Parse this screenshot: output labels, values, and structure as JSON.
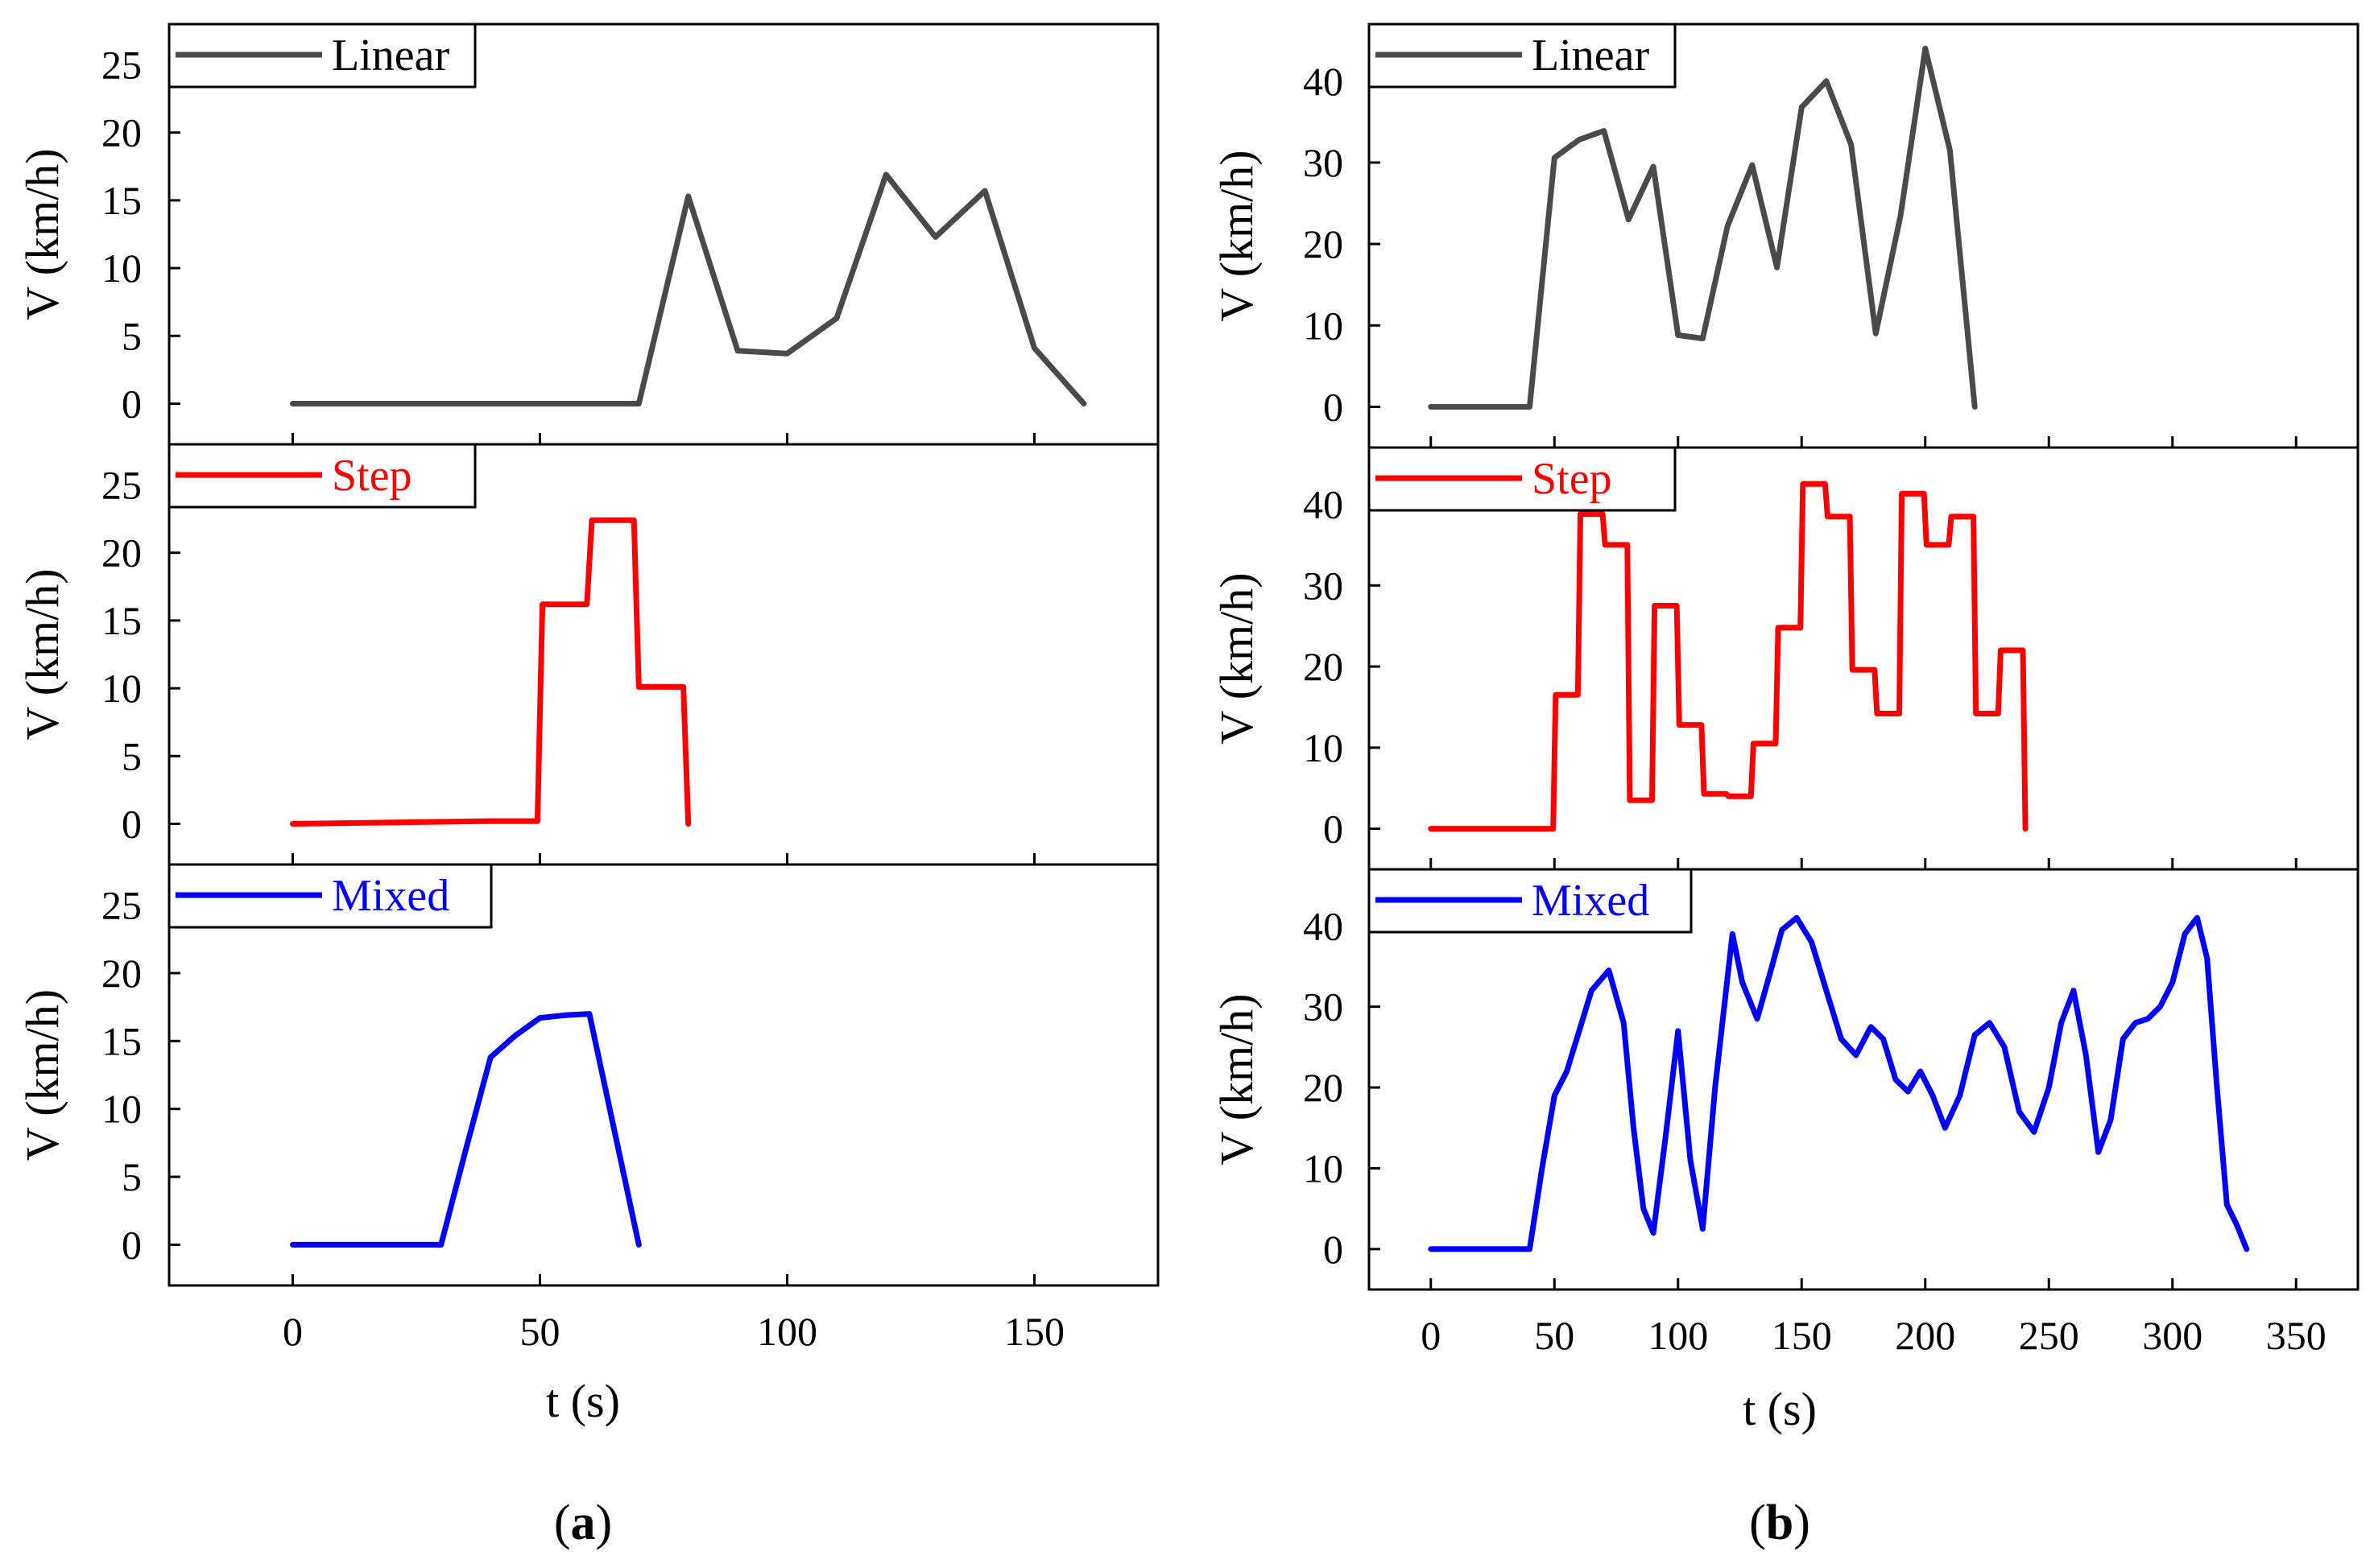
{
  "colors": {
    "Linear": "#4a4a4a",
    "Step": "#ff0000",
    "Mixed": "#0000ff"
  },
  "chart_data": [
    {
      "panel": "a",
      "label_open": "(",
      "label_letter": "a",
      "label_close": ")",
      "type": "line",
      "xlabel": "t (s)",
      "ylabel": "V (km/h)",
      "xlim": [
        -25,
        175
      ],
      "ylim": [
        -3,
        28
      ],
      "xticks": [
        0,
        50,
        100,
        150
      ],
      "yticks": [
        0,
        5,
        10,
        15,
        20,
        25
      ],
      "series": [
        {
          "name": "Linear",
          "color": "#4a4a4a",
          "x": [
            0,
            70,
            80,
            90,
            100,
            110,
            120,
            130,
            140,
            150,
            160
          ],
          "y": [
            0,
            0,
            15.3,
            3.9,
            3.7,
            6.3,
            16.9,
            12.3,
            15.7,
            4.1,
            0
          ]
        },
        {
          "name": "Step",
          "color": "#ff0000",
          "x": [
            0,
            40,
            49.5,
            50.5,
            59.5,
            60.5,
            69,
            70,
            79,
            80
          ],
          "y": [
            0,
            0.2,
            0.2,
            16.2,
            16.2,
            22.4,
            22.4,
            10.1,
            10.1,
            0
          ]
        },
        {
          "name": "Mixed",
          "color": "#0000ff",
          "x": [
            0,
            30,
            35,
            40,
            45,
            50,
            55,
            60,
            65,
            70
          ],
          "y": [
            0,
            0,
            7,
            13.8,
            15.4,
            16.7,
            16.9,
            17,
            8.5,
            0
          ]
        }
      ]
    },
    {
      "panel": "b",
      "label_open": "(",
      "label_letter": "b",
      "label_close": ")",
      "type": "line",
      "xlabel": "t (s)",
      "ylabel": "V (km/h)",
      "xlim": [
        -25,
        375
      ],
      "ylim": [
        -5,
        47
      ],
      "xticks": [
        0,
        50,
        100,
        150,
        200,
        250,
        300,
        350
      ],
      "yticks": [
        0,
        10,
        20,
        30,
        40
      ],
      "series": [
        {
          "name": "Linear",
          "color": "#4a4a4a",
          "x": [
            0,
            40,
            50,
            60,
            70,
            80,
            90,
            100,
            110,
            120,
            130,
            140,
            150,
            160,
            170,
            180,
            190,
            200,
            210,
            220
          ],
          "y": [
            0,
            0,
            30.6,
            32.8,
            33.9,
            23,
            29.5,
            8.8,
            8.4,
            22.2,
            29.7,
            17.1,
            36.8,
            40,
            32.2,
            9,
            23.5,
            44,
            31.5,
            0
          ]
        },
        {
          "name": "Step",
          "color": "#ff0000",
          "x": [
            0,
            49.5,
            50.5,
            59.5,
            60.5,
            69.5,
            70.5,
            79.5,
            80.5,
            89.5,
            90.5,
            99.5,
            100.5,
            109.5,
            110.5,
            119.5,
            120.5,
            129.5,
            130.5,
            139.5,
            140.5,
            149.5,
            150.5,
            159.5,
            160.5,
            169.5,
            170.5,
            179.5,
            180.5,
            189.5,
            190.5,
            199.5,
            200.5,
            209.5,
            210.5,
            219.5,
            220.5,
            229.5,
            230.5,
            239.5,
            240.5
          ],
          "y": [
            0,
            0,
            16.5,
            16.5,
            38.8,
            38.8,
            35,
            35,
            3.5,
            3.5,
            27.5,
            27.5,
            12.8,
            12.8,
            4.3,
            4.3,
            4,
            4,
            10.5,
            10.5,
            24.8,
            24.8,
            42.5,
            42.5,
            38.5,
            38.5,
            19.6,
            19.6,
            14.2,
            14.2,
            41.3,
            41.3,
            35,
            35,
            38.5,
            38.5,
            14.2,
            14.2,
            22,
            22,
            0
          ]
        },
        {
          "name": "Mixed",
          "color": "#0000ff",
          "x": [
            0,
            40,
            45,
            50,
            55,
            60,
            65,
            72,
            78,
            82,
            86,
            90,
            95,
            100,
            105,
            110,
            115,
            122,
            126,
            132,
            138,
            142,
            148,
            154,
            160,
            166,
            172,
            178,
            183,
            188,
            193,
            198,
            203,
            208,
            214,
            220,
            226,
            232,
            238,
            244,
            250,
            255,
            260,
            265,
            270,
            275,
            280,
            285,
            290,
            295,
            300,
            305,
            310,
            314,
            318,
            322,
            326,
            330
          ],
          "y": [
            0,
            0,
            10,
            19,
            22,
            27,
            32,
            34.5,
            28,
            15,
            5,
            2,
            14,
            27,
            11,
            2.5,
            20,
            39,
            33,
            28.5,
            35,
            39.5,
            41,
            38,
            32,
            26,
            24,
            27.5,
            26,
            21,
            19.5,
            22,
            19,
            15,
            19,
            26.5,
            28,
            25,
            17,
            14.5,
            20,
            28,
            32,
            24,
            12,
            16,
            26,
            28,
            28.5,
            30,
            33,
            39,
            41,
            36,
            20,
            5.5,
            3,
            0
          ]
        }
      ]
    }
  ]
}
